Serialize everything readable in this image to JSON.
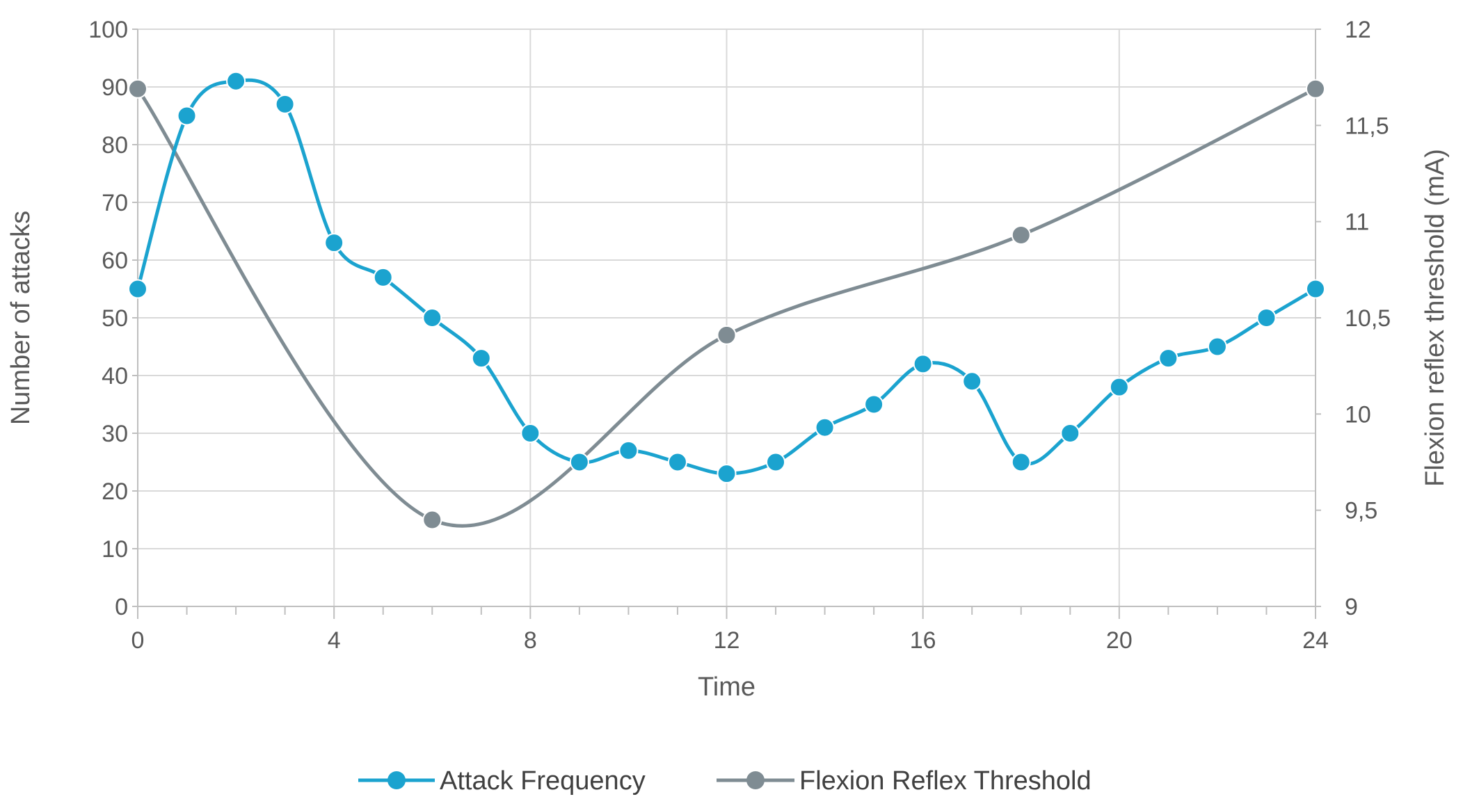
{
  "chart_data": {
    "type": "line",
    "xlabel": "Time",
    "ylabel": "Number of attacks",
    "y2label": "Flexion reflex threshold (mA)",
    "xlim": [
      0,
      24
    ],
    "ylim": [
      0,
      100
    ],
    "y2lim": [
      9,
      12
    ],
    "x_ticks": [
      "0",
      "4",
      "8",
      "12",
      "16",
      "20",
      "24"
    ],
    "y_ticks": [
      "0",
      "10",
      "20",
      "30",
      "40",
      "50",
      "60",
      "70",
      "80",
      "90",
      "100"
    ],
    "y2_ticks": [
      "9",
      "9,5",
      "10",
      "10,5",
      "11",
      "11,5",
      "12"
    ],
    "grid": true,
    "legend_position": "bottom",
    "series": [
      {
        "name": "Attack Frequency",
        "axis": "left",
        "color": "#1ba3cf",
        "smooth": true,
        "x": [
          0,
          1,
          2,
          3,
          4,
          5,
          6,
          7,
          8,
          9,
          10,
          11,
          12,
          13,
          14,
          15,
          16,
          17,
          18,
          19,
          20,
          21,
          22,
          23,
          24
        ],
        "y": [
          55,
          85,
          91,
          87,
          63,
          57,
          50,
          43,
          30,
          25,
          27,
          25,
          23,
          25,
          31,
          35,
          42,
          39,
          25,
          30,
          38,
          43,
          45,
          50,
          55
        ]
      },
      {
        "name": "Flexion Reflex Threshold",
        "axis": "right",
        "color": "#7f8c93",
        "smooth": true,
        "x": [
          0,
          6,
          12,
          18,
          24
        ],
        "y": [
          11.69,
          9.45,
          10.41,
          10.93,
          11.69
        ]
      }
    ]
  }
}
